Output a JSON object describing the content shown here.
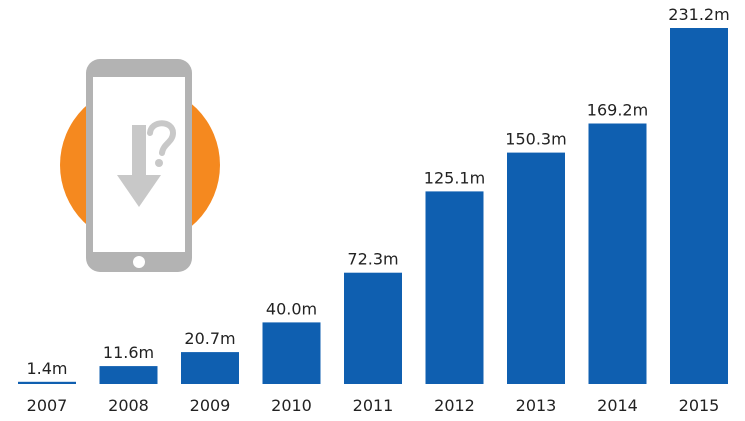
{
  "chart_data": {
    "type": "bar",
    "categories": [
      "2007",
      "2008",
      "2009",
      "2010",
      "2011",
      "2012",
      "2013",
      "2014",
      "2015"
    ],
    "values": [
      1.4,
      11.6,
      20.7,
      40.0,
      72.3,
      125.1,
      150.3,
      169.2,
      231.2
    ],
    "value_labels": [
      "1.4m",
      "11.6m",
      "20.7m",
      "40.0m",
      "72.3m",
      "125.1m",
      "150.3m",
      "169.2m",
      "231.2m"
    ],
    "title": "",
    "xlabel": "",
    "ylabel": "",
    "ylim": [
      0,
      231.2
    ],
    "grid": false,
    "bar_color": "#0f5fb0"
  },
  "illustration": {
    "name": "smartphone-download-icon",
    "circle_color": "#f5891f",
    "phone_color": "#b3b3b3",
    "screen_color": "#ffffff",
    "arrow_color": "#c8c8c8"
  }
}
